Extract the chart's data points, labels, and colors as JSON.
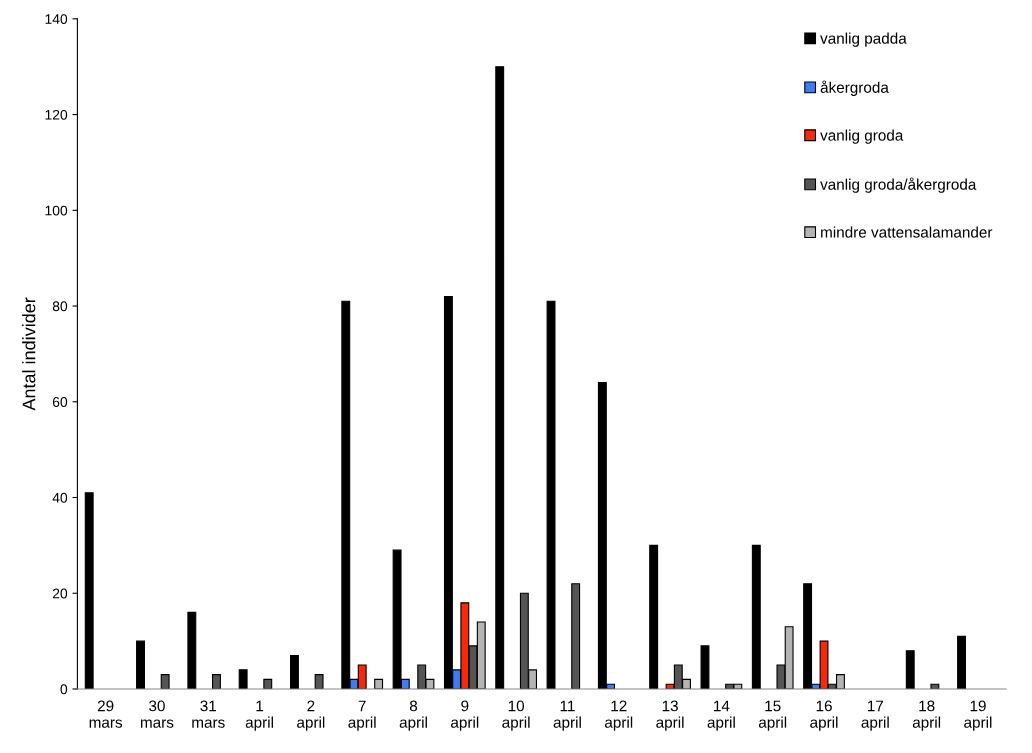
{
  "chart_data": {
    "type": "bar",
    "ylabel": "Antal individer",
    "categories": [
      "29\nmars",
      "30\nmars",
      "31\nmars",
      "1\napril",
      "2\napril",
      "7\napril",
      "8\napril",
      "9\napril",
      "10\napril",
      "11\napril",
      "12\napril",
      "13\napril",
      "14\napril",
      "15\napril",
      "16\napril",
      "17\napril",
      "18\napril",
      "19\napril"
    ],
    "series": [
      {
        "name": "vanlig padda",
        "color": "#000000",
        "values": [
          41,
          10,
          16,
          4,
          7,
          81,
          29,
          82,
          130,
          81,
          64,
          30,
          9,
          30,
          22,
          null,
          8,
          11
        ]
      },
      {
        "name": "åkergroda",
        "color": "#3a7df5",
        "values": [
          null,
          null,
          null,
          null,
          null,
          2,
          2,
          4,
          null,
          null,
          1,
          null,
          null,
          null,
          1,
          null,
          null,
          null
        ]
      },
      {
        "name": "vanlig groda",
        "color": "#f52a0c",
        "values": [
          null,
          null,
          null,
          null,
          null,
          5,
          null,
          18,
          null,
          null,
          null,
          1,
          null,
          null,
          10,
          null,
          null,
          null
        ]
      },
      {
        "name": "vanlig groda/åkergroda",
        "color": "#555555",
        "values": [
          null,
          3,
          3,
          2,
          3,
          null,
          5,
          9,
          20,
          22,
          null,
          5,
          1,
          5,
          1,
          null,
          1,
          null
        ]
      },
      {
        "name": "mindre vattensalamander",
        "color": "#b4b4b4",
        "values": [
          null,
          null,
          null,
          null,
          null,
          2,
          2,
          14,
          4,
          null,
          null,
          2,
          1,
          13,
          3,
          null,
          null,
          null
        ]
      }
    ],
    "ylim": [
      0,
      140
    ],
    "yticks": [
      0,
      20,
      40,
      60,
      80,
      100,
      120,
      140
    ],
    "grid": false,
    "legend": "top right"
  }
}
